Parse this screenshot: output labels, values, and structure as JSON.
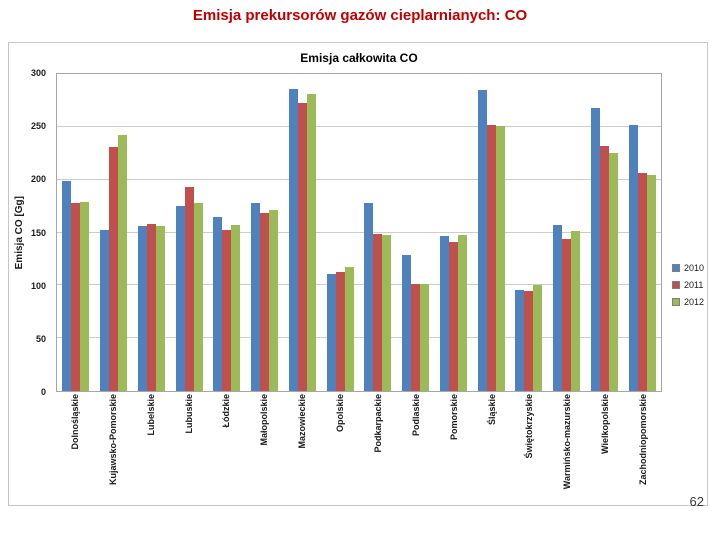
{
  "page": {
    "title": "Emisja prekursorów gazów cieplarnianych:  CO",
    "number": "62"
  },
  "chart_data": {
    "type": "bar",
    "title": "Emisja całkowita CO",
    "ylabel": "Emisja CO [Gg]",
    "xlabel": "",
    "ylim": [
      0,
      300
    ],
    "ytick_step": 50,
    "grid": true,
    "legend_position": "right",
    "categories": [
      "Dolnośląskie",
      "Kujawsko-Pomorskie",
      "Lubelskie",
      "Lubuskie",
      "Łódzkie",
      "Małopolskie",
      "Mazowieckie",
      "Opolskie",
      "Podkarpackie",
      "Podlaskie",
      "Pomorskie",
      "Śląskie",
      "Świętokrzyskie",
      "Warmińsko-mazurskie",
      "Wielkopolskie",
      "Zachodniopomorskie"
    ],
    "series": [
      {
        "name": "2010",
        "color": "#4F81BD",
        "values": [
          199,
          152,
          156,
          175,
          165,
          178,
          286,
          111,
          178,
          129,
          147,
          285,
          96,
          157,
          268,
          252
        ]
      },
      {
        "name": "2011",
        "color": "#C0504D",
        "values": [
          178,
          231,
          158,
          193,
          152,
          168,
          273,
          113,
          149,
          101,
          141,
          252,
          95,
          144,
          232,
          206
        ]
      },
      {
        "name": "2012",
        "color": "#9BBB59",
        "values": [
          179,
          242,
          156,
          178,
          157,
          171,
          281,
          117,
          148,
          101,
          148,
          251,
          100,
          151,
          225,
          204
        ]
      }
    ]
  }
}
